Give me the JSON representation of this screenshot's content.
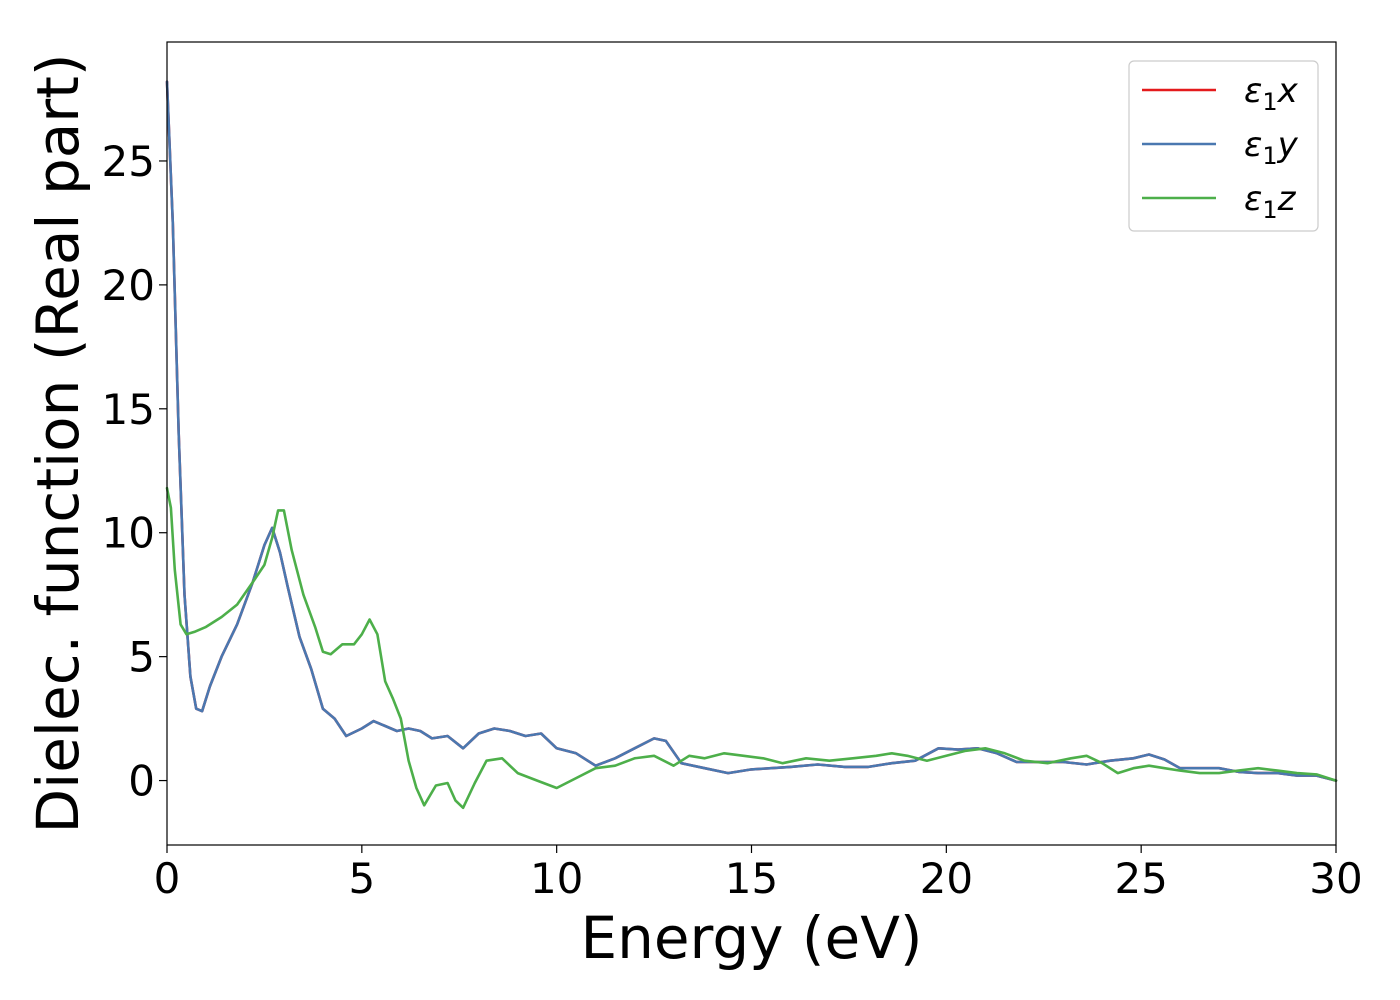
{
  "chart_data": {
    "type": "line",
    "xlabel": "Energy (eV)",
    "ylabel": "Dielec. function (Real part)",
    "xlim": [
      0,
      30
    ],
    "ylim": [
      -2.6,
      29.8
    ],
    "xticks": [
      0,
      5,
      10,
      15,
      20,
      25,
      30
    ],
    "yticks": [
      0,
      5,
      10,
      15,
      20,
      25
    ],
    "grid": false,
    "legend_position": "top-right",
    "series": [
      {
        "name": "ε1x",
        "label_base": "ε",
        "label_sub": "1",
        "label_var": "x",
        "color": "#e41a1c",
        "x": [
          0,
          0.15,
          0.3,
          0.45,
          0.6,
          0.75,
          0.9,
          1.1,
          1.4,
          1.8,
          2.2,
          2.5,
          2.7,
          2.9,
          3.1,
          3.4,
          3.7,
          4.0,
          4.3,
          4.6,
          5.0,
          5.3,
          5.6,
          5.9,
          6.2,
          6.5,
          6.8,
          7.2,
          7.6,
          8.0,
          8.4,
          8.8,
          9.2,
          9.6,
          10.0,
          10.5,
          11.0,
          11.5,
          12.0,
          12.5,
          12.8,
          13.2,
          13.8,
          14.4,
          15.0,
          15.5,
          16.0,
          16.7,
          17.4,
          18.0,
          18.6,
          19.2,
          19.8,
          20.3,
          20.8,
          21.3,
          21.8,
          22.4,
          23.0,
          23.6,
          24.2,
          24.8,
          25.2,
          25.6,
          26.0,
          26.5,
          27.0,
          27.5,
          28.0,
          28.5,
          29.0,
          29.5,
          30.0
        ],
        "y": [
          28.2,
          22.5,
          14.0,
          7.5,
          4.2,
          2.9,
          2.8,
          3.8,
          5.0,
          6.3,
          8.0,
          9.5,
          10.2,
          9.2,
          7.8,
          5.8,
          4.5,
          2.9,
          2.5,
          1.8,
          2.1,
          2.4,
          2.2,
          2.0,
          2.1,
          2.0,
          1.7,
          1.8,
          1.3,
          1.9,
          2.1,
          2.0,
          1.8,
          1.9,
          1.3,
          1.1,
          0.6,
          0.9,
          1.3,
          1.7,
          1.6,
          0.7,
          0.5,
          0.3,
          0.45,
          0.5,
          0.55,
          0.65,
          0.55,
          0.55,
          0.7,
          0.8,
          1.3,
          1.25,
          1.3,
          1.1,
          0.75,
          0.75,
          0.75,
          0.65,
          0.8,
          0.9,
          1.05,
          0.85,
          0.5,
          0.5,
          0.5,
          0.35,
          0.3,
          0.3,
          0.2,
          0.2,
          0.0
        ]
      },
      {
        "name": "ε1y",
        "label_base": "ε",
        "label_sub": "1",
        "label_var": "y",
        "color": "#4a78b0",
        "x": [
          0,
          0.15,
          0.3,
          0.45,
          0.6,
          0.75,
          0.9,
          1.1,
          1.4,
          1.8,
          2.2,
          2.5,
          2.7,
          2.9,
          3.1,
          3.4,
          3.7,
          4.0,
          4.3,
          4.6,
          5.0,
          5.3,
          5.6,
          5.9,
          6.2,
          6.5,
          6.8,
          7.2,
          7.6,
          8.0,
          8.4,
          8.8,
          9.2,
          9.6,
          10.0,
          10.5,
          11.0,
          11.5,
          12.0,
          12.5,
          12.8,
          13.2,
          13.8,
          14.4,
          15.0,
          15.5,
          16.0,
          16.7,
          17.4,
          18.0,
          18.6,
          19.2,
          19.8,
          20.3,
          20.8,
          21.3,
          21.8,
          22.4,
          23.0,
          23.6,
          24.2,
          24.8,
          25.2,
          25.6,
          26.0,
          26.5,
          27.0,
          27.5,
          28.0,
          28.5,
          29.0,
          29.5,
          30.0
        ],
        "y": [
          28.2,
          22.5,
          14.0,
          7.5,
          4.2,
          2.9,
          2.8,
          3.8,
          5.0,
          6.3,
          8.0,
          9.5,
          10.2,
          9.2,
          7.8,
          5.8,
          4.5,
          2.9,
          2.5,
          1.8,
          2.1,
          2.4,
          2.2,
          2.0,
          2.1,
          2.0,
          1.7,
          1.8,
          1.3,
          1.9,
          2.1,
          2.0,
          1.8,
          1.9,
          1.3,
          1.1,
          0.6,
          0.9,
          1.3,
          1.7,
          1.6,
          0.7,
          0.5,
          0.3,
          0.45,
          0.5,
          0.55,
          0.65,
          0.55,
          0.55,
          0.7,
          0.8,
          1.3,
          1.25,
          1.3,
          1.1,
          0.75,
          0.75,
          0.75,
          0.65,
          0.8,
          0.9,
          1.05,
          0.85,
          0.5,
          0.5,
          0.5,
          0.35,
          0.3,
          0.3,
          0.2,
          0.2,
          0.0
        ]
      },
      {
        "name": "ε1z",
        "label_base": "ε",
        "label_sub": "1",
        "label_var": "z",
        "color": "#4daf4a",
        "x": [
          0,
          0.1,
          0.2,
          0.35,
          0.5,
          0.7,
          1.0,
          1.4,
          1.8,
          2.2,
          2.5,
          2.7,
          2.85,
          3.0,
          3.2,
          3.5,
          3.8,
          4.0,
          4.2,
          4.5,
          4.8,
          5.0,
          5.2,
          5.4,
          5.6,
          5.8,
          6.0,
          6.2,
          6.4,
          6.6,
          6.9,
          7.2,
          7.4,
          7.6,
          7.9,
          8.2,
          8.6,
          9.0,
          9.5,
          10.0,
          10.5,
          11.0,
          11.5,
          12.0,
          12.5,
          13.0,
          13.4,
          13.8,
          14.3,
          14.8,
          15.3,
          15.8,
          16.4,
          17.0,
          17.6,
          18.2,
          18.6,
          19.0,
          19.5,
          20.0,
          20.5,
          21.0,
          21.5,
          22.0,
          22.6,
          23.2,
          23.6,
          24.0,
          24.4,
          24.8,
          25.2,
          25.6,
          26.0,
          26.5,
          27.0,
          27.5,
          28.0,
          28.5,
          29.0,
          29.5,
          30.0
        ],
        "y": [
          11.8,
          11.0,
          8.5,
          6.3,
          5.9,
          6.0,
          6.2,
          6.6,
          7.1,
          8.0,
          8.7,
          9.8,
          10.9,
          10.9,
          9.3,
          7.5,
          6.2,
          5.2,
          5.1,
          5.5,
          5.5,
          5.9,
          6.5,
          5.9,
          4.0,
          3.3,
          2.5,
          0.8,
          -0.3,
          -1.0,
          -0.2,
          -0.1,
          -0.8,
          -1.1,
          -0.1,
          0.8,
          0.9,
          0.3,
          0.0,
          -0.3,
          0.1,
          0.5,
          0.6,
          0.9,
          1.0,
          0.6,
          1.0,
          0.9,
          1.1,
          1.0,
          0.9,
          0.7,
          0.9,
          0.8,
          0.9,
          1.0,
          1.1,
          1.0,
          0.8,
          1.0,
          1.2,
          1.3,
          1.1,
          0.8,
          0.7,
          0.9,
          1.0,
          0.7,
          0.3,
          0.5,
          0.6,
          0.5,
          0.4,
          0.3,
          0.3,
          0.4,
          0.5,
          0.4,
          0.3,
          0.25,
          0.0
        ]
      }
    ]
  }
}
